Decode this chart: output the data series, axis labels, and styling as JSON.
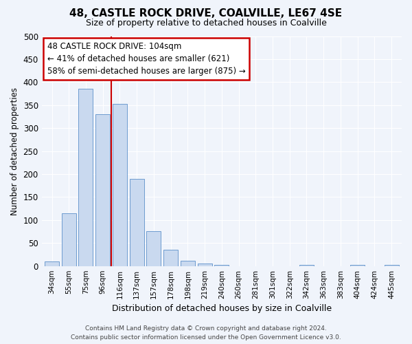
{
  "title1": "48, CASTLE ROCK DRIVE, COALVILLE, LE67 4SE",
  "title2": "Size of property relative to detached houses in Coalville",
  "xlabel": "Distribution of detached houses by size in Coalville",
  "ylabel": "Number of detached properties",
  "categories": [
    "34sqm",
    "55sqm",
    "75sqm",
    "96sqm",
    "116sqm",
    "137sqm",
    "157sqm",
    "178sqm",
    "198sqm",
    "219sqm",
    "240sqm",
    "260sqm",
    "281sqm",
    "301sqm",
    "322sqm",
    "342sqm",
    "363sqm",
    "383sqm",
    "404sqm",
    "424sqm",
    "445sqm"
  ],
  "values": [
    10,
    115,
    385,
    330,
    352,
    190,
    76,
    36,
    12,
    5,
    2,
    0,
    0,
    0,
    0,
    2,
    0,
    0,
    2,
    0,
    2
  ],
  "bar_color": "#c9d9ef",
  "bar_edge_color": "#5b8fc9",
  "vline_x": 3.5,
  "vline_color": "#cc0000",
  "annotation_text": "48 CASTLE ROCK DRIVE: 104sqm\n← 41% of detached houses are smaller (621)\n58% of semi-detached houses are larger (875) →",
  "annotation_box_color": "#ffffff",
  "annotation_box_edge": "#cc0000",
  "ylim": [
    0,
    500
  ],
  "yticks": [
    0,
    50,
    100,
    150,
    200,
    250,
    300,
    350,
    400,
    450,
    500
  ],
  "footnote": "Contains HM Land Registry data © Crown copyright and database right 2024.\nContains public sector information licensed under the Open Government Licence v3.0.",
  "background_color": "#f0f4fb",
  "grid_color": "#ffffff"
}
